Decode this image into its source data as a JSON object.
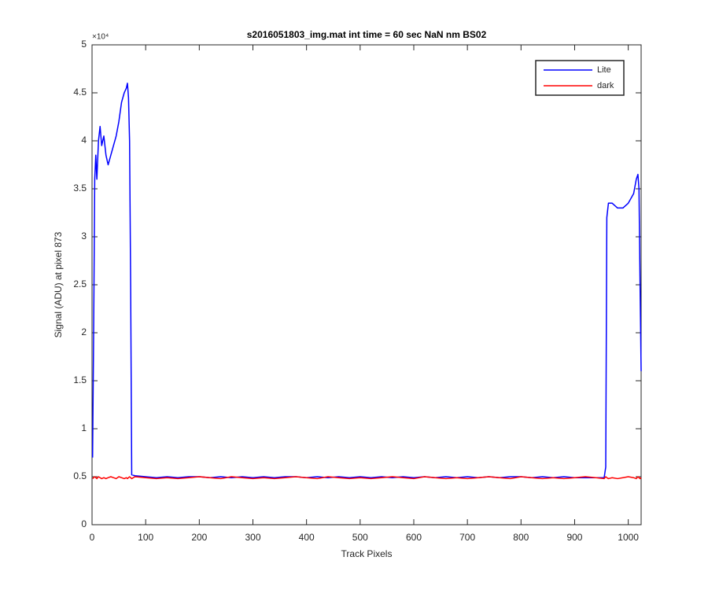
{
  "chart_data": {
    "type": "line",
    "title": "s2016051803_img.mat int time = 60 sec  NaN nm BS02",
    "x_label": "Track Pixels",
    "y_label": "Signal (ADU) at pixel 873",
    "y_multiplier": "×10⁴",
    "xlim": [
      0,
      1024
    ],
    "ylim": [
      0,
      5
    ],
    "xticks": [
      0,
      100,
      200,
      300,
      400,
      500,
      600,
      700,
      800,
      900,
      1000
    ],
    "yticks": [
      0,
      0.5,
      1,
      1.5,
      2,
      2.5,
      3,
      3.5,
      4,
      4.5,
      5
    ],
    "legend_position": "upper-right",
    "x": [
      1,
      3,
      5,
      7,
      9,
      12,
      15,
      18,
      22,
      26,
      30,
      35,
      40,
      45,
      50,
      55,
      60,
      64,
      66,
      68,
      70,
      72,
      74,
      80,
      100,
      120,
      140,
      160,
      180,
      200,
      220,
      240,
      260,
      280,
      300,
      320,
      340,
      360,
      380,
      400,
      420,
      440,
      460,
      480,
      500,
      520,
      540,
      560,
      580,
      600,
      620,
      640,
      660,
      680,
      700,
      720,
      740,
      760,
      780,
      800,
      820,
      840,
      860,
      880,
      900,
      920,
      940,
      955,
      958,
      960,
      963,
      970,
      980,
      990,
      1000,
      1010,
      1015,
      1018,
      1020,
      1022,
      1024
    ],
    "series": [
      {
        "name": "Lite",
        "color": "#0000ff",
        "values": [
          0.7,
          2.0,
          3.6,
          3.85,
          3.6,
          4.0,
          4.15,
          3.95,
          4.05,
          3.85,
          3.75,
          3.85,
          3.95,
          4.05,
          4.2,
          4.4,
          4.5,
          4.55,
          4.6,
          4.45,
          4.0,
          2.5,
          0.52,
          0.51,
          0.5,
          0.49,
          0.5,
          0.49,
          0.5,
          0.5,
          0.49,
          0.5,
          0.49,
          0.5,
          0.49,
          0.5,
          0.49,
          0.5,
          0.5,
          0.49,
          0.5,
          0.49,
          0.5,
          0.49,
          0.5,
          0.49,
          0.5,
          0.49,
          0.5,
          0.49,
          0.5,
          0.49,
          0.5,
          0.49,
          0.5,
          0.49,
          0.5,
          0.49,
          0.5,
          0.5,
          0.49,
          0.5,
          0.49,
          0.5,
          0.49,
          0.49,
          0.49,
          0.49,
          0.6,
          3.2,
          3.35,
          3.35,
          3.3,
          3.3,
          3.35,
          3.45,
          3.6,
          3.65,
          3.5,
          2.5,
          1.6
        ]
      },
      {
        "name": "dark",
        "color": "#ff0000",
        "values": [
          0.48,
          0.49,
          0.5,
          0.49,
          0.48,
          0.5,
          0.49,
          0.48,
          0.49,
          0.48,
          0.49,
          0.5,
          0.49,
          0.48,
          0.5,
          0.49,
          0.48,
          0.49,
          0.48,
          0.49,
          0.5,
          0.49,
          0.48,
          0.5,
          0.49,
          0.48,
          0.49,
          0.48,
          0.49,
          0.5,
          0.49,
          0.48,
          0.5,
          0.49,
          0.48,
          0.49,
          0.48,
          0.49,
          0.5,
          0.49,
          0.48,
          0.5,
          0.49,
          0.48,
          0.49,
          0.48,
          0.49,
          0.5,
          0.49,
          0.48,
          0.5,
          0.49,
          0.48,
          0.49,
          0.48,
          0.49,
          0.5,
          0.49,
          0.48,
          0.5,
          0.49,
          0.48,
          0.49,
          0.48,
          0.49,
          0.5,
          0.49,
          0.48,
          0.5,
          0.49,
          0.48,
          0.49,
          0.48,
          0.49,
          0.5,
          0.49,
          0.48,
          0.5,
          0.49,
          0.48,
          0.49
        ]
      }
    ]
  }
}
